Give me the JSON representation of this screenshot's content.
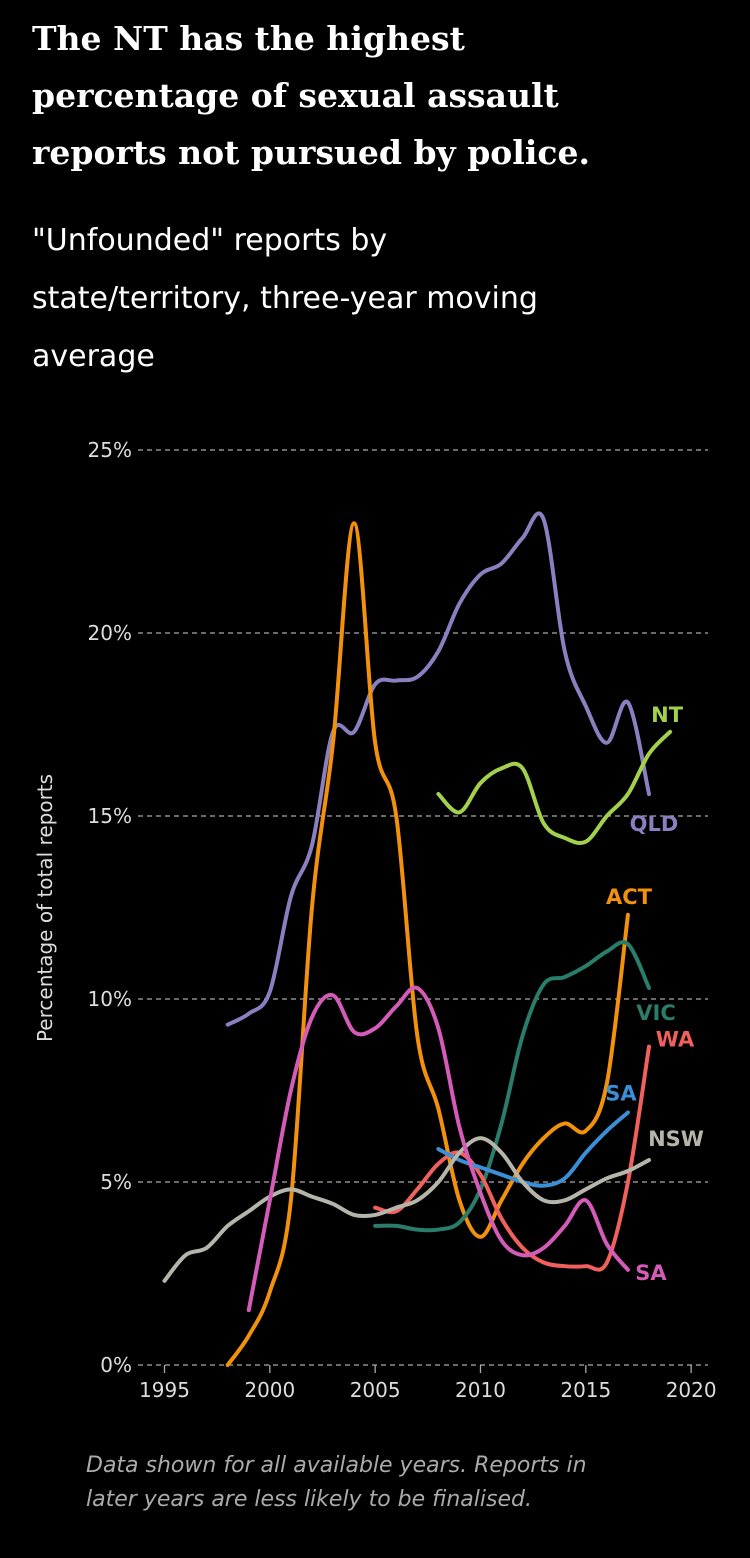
{
  "chart_data": {
    "type": "line",
    "title": [
      "The NT has the highest",
      "percentage of sexual assault",
      "reports not pursued by police."
    ],
    "subtitle": [
      "\"Unfounded\" reports by",
      "state/territory, three-year moving",
      "average"
    ],
    "y_label": "Percentage of total reports",
    "note": [
      "Data shown for all available years. Reports in",
      "later years are less likely to be finalised."
    ],
    "x": [
      1995,
      1996,
      1997,
      1998,
      1999,
      2000,
      2001,
      2002,
      2003,
      2004,
      2005,
      2006,
      2007,
      2008,
      2009,
      2010,
      2011,
      2012,
      2013,
      2014,
      2015,
      2016,
      2017,
      2018,
      2019
    ],
    "xlim": [
      1993.6,
      2020.8
    ],
    "xticks": [
      1995,
      2000,
      2005,
      2010,
      2015,
      2020
    ],
    "ylim": [
      0,
      25
    ],
    "yticks": [
      {
        "value": 0,
        "label": "0%"
      },
      {
        "value": 5,
        "label": "5%"
      },
      {
        "value": 10,
        "label": "10%"
      },
      {
        "value": 15,
        "label": "15%"
      },
      {
        "value": 20,
        "label": "20%"
      },
      {
        "value": 25,
        "label": "25%"
      }
    ],
    "grid": true,
    "series": [
      {
        "name": "QLD",
        "color": "#8c7fc0",
        "values": [
          null,
          null,
          null,
          9.3,
          9.6,
          10.2,
          12.8,
          14.2,
          17.3,
          17.3,
          18.6,
          18.7,
          18.8,
          19.5,
          20.8,
          21.6,
          21.9,
          22.6,
          23.1,
          19.5,
          18.0,
          17.0,
          18.1,
          15.6,
          null
        ]
      },
      {
        "name": "NT",
        "color": "#a4d14b",
        "values": [
          null,
          null,
          null,
          null,
          null,
          null,
          null,
          null,
          null,
          null,
          null,
          null,
          null,
          15.6,
          15.1,
          15.9,
          16.3,
          16.3,
          14.8,
          14.4,
          14.3,
          15.0,
          15.6,
          16.7,
          17.3
        ]
      },
      {
        "name": "ACT",
        "color": "#f2920c",
        "values": [
          null,
          null,
          null,
          0,
          0.8,
          2.0,
          4.5,
          12.5,
          17.0,
          23.0,
          17.0,
          15.0,
          9.0,
          7.0,
          4.5,
          3.5,
          4.5,
          5.5,
          6.2,
          6.6,
          6.4,
          7.7,
          12.3,
          null,
          null
        ]
      },
      {
        "name": "VIC",
        "color": "#2a7d6b",
        "values": [
          null,
          null,
          null,
          null,
          null,
          null,
          null,
          null,
          null,
          null,
          3.8,
          3.8,
          3.7,
          3.7,
          3.9,
          4.8,
          6.6,
          9.0,
          10.4,
          10.6,
          10.9,
          11.3,
          11.5,
          10.3,
          null
        ]
      },
      {
        "name": "WA",
        "color": "#f0605d",
        "values": [
          null,
          null,
          null,
          null,
          null,
          null,
          null,
          null,
          null,
          null,
          4.3,
          4.2,
          4.8,
          5.5,
          5.8,
          5.2,
          4.0,
          3.2,
          2.8,
          2.7,
          2.7,
          2.8,
          5.0,
          8.7,
          null
        ]
      },
      {
        "name": "SA",
        "color": "#3a8fd6",
        "values": [
          null,
          null,
          null,
          null,
          null,
          null,
          null,
          null,
          null,
          null,
          null,
          null,
          null,
          5.9,
          5.6,
          5.4,
          5.2,
          5.0,
          4.9,
          5.1,
          5.8,
          6.4,
          6.9,
          null,
          null
        ]
      },
      {
        "name": "NSW",
        "color": "#b5b5aa",
        "values": [
          2.3,
          3.0,
          3.2,
          3.8,
          4.2,
          4.6,
          4.8,
          4.6,
          4.4,
          4.1,
          4.1,
          4.3,
          4.5,
          5.0,
          5.8,
          6.2,
          5.8,
          5.0,
          4.5,
          4.5,
          4.8,
          5.1,
          5.3,
          5.6,
          null
        ]
      },
      {
        "name": "SA",
        "color": "#d45bb8",
        "values": [
          null,
          null,
          null,
          null,
          1.5,
          4.5,
          7.5,
          9.5,
          10.1,
          9.1,
          9.2,
          9.8,
          10.3,
          9.2,
          6.5,
          4.7,
          3.4,
          3.0,
          3.2,
          3.8,
          4.5,
          3.3,
          2.6,
          null,
          null
        ]
      }
    ]
  }
}
